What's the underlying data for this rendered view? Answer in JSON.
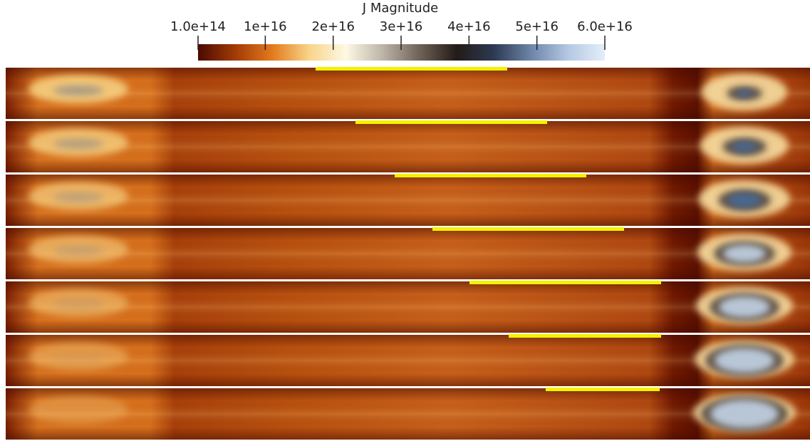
{
  "chart_data": {
    "type": "colorbar",
    "title": "J Magnitude",
    "clim": [
      100000000000000.0,
      6e+16
    ],
    "cticks": [
      {
        "value": 100000000000000.0,
        "label": "1.0e+14"
      },
      {
        "value": 1e+16,
        "label": "1e+16"
      },
      {
        "value": 2e+16,
        "label": "2e+16"
      },
      {
        "value": 3e+16,
        "label": "3e+16"
      },
      {
        "value": 4e+16,
        "label": "4e+16"
      },
      {
        "value": 5e+16,
        "label": "5e+16"
      },
      {
        "value": 6e+16,
        "label": "6.0e+16"
      }
    ],
    "colors": [
      "#4a0a00",
      "#a23a06",
      "#e3791c",
      "#f8d489",
      "#fdf9e4",
      "#bcb4a6",
      "#6e6156",
      "#231b18",
      "#2d3a52",
      "#6d85a8",
      "#b4c8e2",
      "#e4eefa"
    ]
  }
}
